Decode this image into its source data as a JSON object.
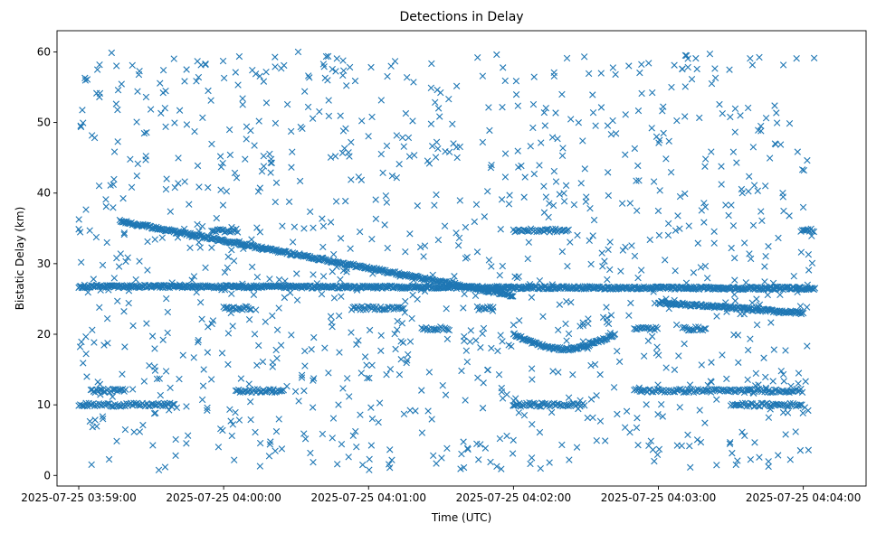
{
  "chart_data": {
    "type": "scatter",
    "title": "Detections in Delay",
    "xlabel": "Time (UTC)",
    "ylabel": "Bistatic Delay (km)",
    "marker": "x",
    "color": "#1f77b4",
    "grid": false,
    "legend": "none",
    "x_tick_labels": [
      "2025-07-25 03:59:00",
      "2025-07-25 04:00:00",
      "2025-07-25 04:01:00",
      "2025-07-25 04:02:00",
      "2025-07-25 04:03:00",
      "2025-07-25 04:04:00"
    ],
    "xlim": [
      "2025-07-25 03:58:51",
      "2025-07-25 04:04:26"
    ],
    "y_ticks": [
      0,
      10,
      20,
      30,
      40,
      50,
      60
    ],
    "ylim": [
      -1.5,
      63
    ],
    "tracks": [
      {
        "name": "descending target",
        "x_start": "2025-07-25 03:59:17",
        "x_end": "2025-07-25 04:02:00",
        "y_start": 36.0,
        "y_end": 25.5
      },
      {
        "name": "band near 27 km",
        "x_start": "2025-07-25 03:59:00",
        "x_end": "2025-07-25 04:04:05",
        "y_start": 26.8,
        "y_end": 26.5
      },
      {
        "name": "dip track",
        "x_start": "2025-07-25 04:02:00",
        "x_end": "2025-07-25 04:02:42",
        "y_start": 20.0,
        "y_end": 20.0,
        "y_min": 17.9
      },
      {
        "name": "track near 23 km",
        "x_start": "2025-07-25 04:03:00",
        "x_end": "2025-07-25 04:04:00",
        "y_start": 24.5,
        "y_end": 23.0
      }
    ],
    "bands": [
      {
        "name": "34.7 km band",
        "y": 34.7,
        "segments": [
          [
            "2025-07-25 03:59:00",
            "2025-07-25 03:59:01"
          ],
          [
            "2025-07-25 03:59:55",
            "2025-07-25 04:00:06"
          ],
          [
            "2025-07-25 04:03:59",
            "2025-07-25 04:04:05"
          ],
          [
            "2025-07-25 04:02:00",
            "2025-07-25 04:02:23"
          ]
        ]
      },
      {
        "name": "23.7 km band",
        "y": 23.7,
        "segments": [
          [
            "2025-07-25 04:00:00",
            "2025-07-25 04:00:12"
          ],
          [
            "2025-07-25 04:00:53",
            "2025-07-25 04:01:15"
          ],
          [
            "2025-07-25 04:01:45",
            "2025-07-25 04:01:52"
          ]
        ]
      },
      {
        "name": "20.8 km band",
        "y": 20.8,
        "segments": [
          [
            "2025-07-25 04:01:22",
            "2025-07-25 04:01:34"
          ],
          [
            "2025-07-25 04:02:50",
            "2025-07-25 04:03:00"
          ],
          [
            "2025-07-25 04:03:10",
            "2025-07-25 04:03:20"
          ]
        ]
      },
      {
        "name": "12 km band",
        "y": 12.0,
        "segments": [
          [
            "2025-07-25 03:59:05",
            "2025-07-25 03:59:20"
          ],
          [
            "2025-07-25 04:00:05",
            "2025-07-25 04:00:25"
          ],
          [
            "2025-07-25 04:02:50",
            "2025-07-25 04:04:00"
          ]
        ]
      },
      {
        "name": "10 km band",
        "y": 10.0,
        "segments": [
          [
            "2025-07-25 03:59:00",
            "2025-07-25 03:59:40"
          ],
          [
            "2025-07-25 04:02:00",
            "2025-07-25 04:02:30"
          ],
          [
            "2025-07-25 04:03:30",
            "2025-07-25 04:04:00"
          ]
        ]
      }
    ],
    "scatter_noise": {
      "y_range": [
        0.5,
        60
      ],
      "count": 1100,
      "note": "Widely scattered random detections across the full delay range."
    }
  }
}
